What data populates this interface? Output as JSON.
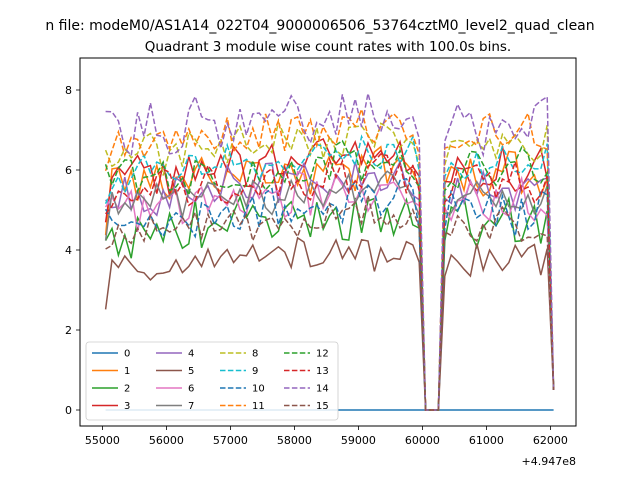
{
  "chart_data": {
    "type": "line",
    "suptitle": "n file: modeM0/AS1A14_022T04_9000006506_53764cztM0_level2_quad_clean",
    "title": "Quadrant 3 module wise count rates with 100.0s bins.",
    "xlabel": "",
    "ylabel": "",
    "offset_text": "+4.947e8",
    "xlim": [
      54650,
      62400
    ],
    "ylim": [
      -0.4,
      8.8
    ],
    "x_ticks": [
      55000,
      56000,
      57000,
      58000,
      59000,
      60000,
      61000,
      62000
    ],
    "x_tick_labels": [
      "55000",
      "56000",
      "57000",
      "58000",
      "59000",
      "60000",
      "61000",
      "62000"
    ],
    "y_ticks": [
      0,
      2,
      4,
      6,
      8
    ],
    "y_tick_labels": [
      "0",
      "2",
      "4",
      "6",
      "8"
    ],
    "grid": false,
    "legend_position": "lower-left",
    "legend_columns": 4,
    "segments": [
      {
        "start": 55050,
        "count": 50
      },
      {
        "start": 60050,
        "count": 3
      },
      {
        "start": 60350,
        "count": 18
      }
    ],
    "series": [
      {
        "name": "0",
        "color": "#1f77b4",
        "dash": "solid",
        "values": [
          0
        ]
      },
      {
        "name": "1",
        "color": "#ff7f0e",
        "dash": "solid",
        "base": 5.6,
        "amp": 0.35
      },
      {
        "name": "2",
        "color": "#2ca02c",
        "dash": "solid",
        "base": 4.4,
        "amp": 0.4
      },
      {
        "name": "3",
        "color": "#d62728",
        "dash": "solid",
        "base": 5.8,
        "amp": 0.35
      },
      {
        "name": "4",
        "color": "#9467bd",
        "dash": "solid",
        "base": 5.3,
        "amp": 0.35
      },
      {
        "name": "5",
        "color": "#8c564b",
        "dash": "solid",
        "base": 3.5,
        "amp": 0.3
      },
      {
        "name": "6",
        "color": "#e377c2",
        "dash": "solid",
        "base": 5.0,
        "amp": 0.35
      },
      {
        "name": "7",
        "color": "#7f7f7f",
        "dash": "solid",
        "base": 5.1,
        "amp": 0.3
      },
      {
        "name": "8",
        "color": "#bcbd22",
        "dash": "dashed",
        "base": 6.3,
        "amp": 0.35
      },
      {
        "name": "9",
        "color": "#17becf",
        "dash": "dashed",
        "base": 5.9,
        "amp": 0.3
      },
      {
        "name": "10",
        "color": "#1f77b4",
        "dash": "dashed",
        "base": 4.7,
        "amp": 0.35
      },
      {
        "name": "11",
        "color": "#ff7f0e",
        "dash": "dashed",
        "base": 6.6,
        "amp": 0.35
      },
      {
        "name": "12",
        "color": "#2ca02c",
        "dash": "dashed",
        "base": 5.7,
        "amp": 0.35
      },
      {
        "name": "13",
        "color": "#d62728",
        "dash": "dashed",
        "base": 5.4,
        "amp": 0.35
      },
      {
        "name": "14",
        "color": "#9467bd",
        "dash": "dashed",
        "base": 6.9,
        "amp": 0.45
      },
      {
        "name": "15",
        "color": "#8c564b",
        "dash": "dashed",
        "base": 4.4,
        "amp": 0.3
      }
    ]
  }
}
